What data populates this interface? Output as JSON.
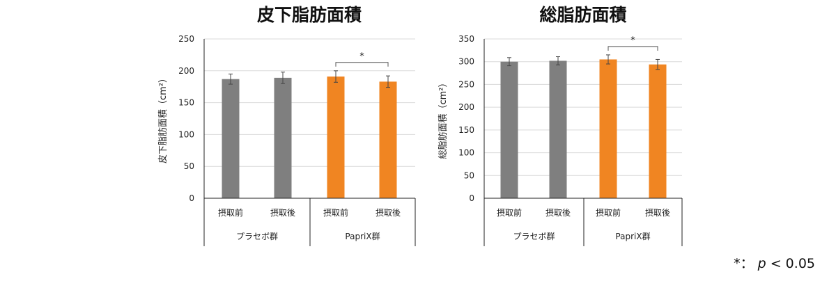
{
  "charts": [
    {
      "title": "皮下脂肪面積",
      "ylabel": "皮下脂肪面積（cm²）",
      "ylim": [
        0,
        250
      ],
      "yticks": [
        "0",
        "50",
        "100",
        "150",
        "200",
        "250"
      ],
      "categories": [
        "摂取前",
        "摂取後",
        "摂取前",
        "摂取後"
      ],
      "groups": [
        "プラセボ群",
        "PapriX群"
      ],
      "values": [
        187,
        189,
        191,
        183
      ],
      "errors": [
        8,
        9,
        9,
        9
      ],
      "colors": [
        "#7f7f7f",
        "#7f7f7f",
        "#f08522",
        "#f08522"
      ],
      "significance": {
        "from": 2,
        "to": 3,
        "label": "*"
      }
    },
    {
      "title": "総脂肪面積",
      "ylabel": "総脂肪面積（cm²）",
      "ylim": [
        0,
        350
      ],
      "yticks": [
        "0",
        "50",
        "100",
        "150",
        "200",
        "250",
        "300",
        "350"
      ],
      "categories": [
        "摂取前",
        "摂取後",
        "摂取前",
        "摂取後"
      ],
      "groups": [
        "プラセボ群",
        "PapriX群"
      ],
      "values": [
        300,
        302,
        305,
        294
      ],
      "errors": [
        9,
        9,
        10,
        11
      ],
      "colors": [
        "#7f7f7f",
        "#7f7f7f",
        "#f08522",
        "#f08522"
      ],
      "significance": {
        "from": 2,
        "to": 3,
        "label": "*"
      }
    }
  ],
  "chart_data": [
    {
      "type": "bar",
      "title": "皮下脂肪面積",
      "ylabel": "皮下脂肪面積（cm²）",
      "categories": [
        "プラセボ群 摂取前",
        "プラセボ群 摂取後",
        "PapriX群 摂取前",
        "PapriX群 摂取後"
      ],
      "values": [
        187,
        189,
        191,
        183
      ],
      "ylim": [
        0,
        250
      ],
      "grid": true
    },
    {
      "type": "bar",
      "title": "総脂肪面積",
      "ylabel": "総脂肪面積（cm²）",
      "categories": [
        "プラセボ群 摂取前",
        "プラセボ群 摂取後",
        "PapriX群 摂取前",
        "PapriX群 摂取後"
      ],
      "values": [
        300,
        302,
        305,
        294
      ],
      "ylim": [
        0,
        350
      ],
      "grid": true
    }
  ],
  "footnote": {
    "star": "*：",
    "p": "p",
    "rest": " < 0.05"
  }
}
